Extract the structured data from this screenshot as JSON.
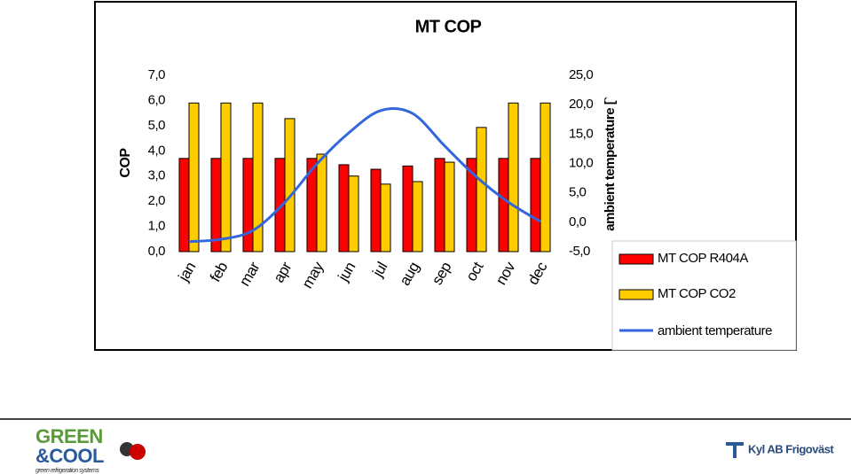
{
  "chart_data": {
    "type": "bar",
    "title": "MT COP",
    "y_label": "COP",
    "y2_label": "ambient temperature [`",
    "categories": [
      "jan",
      "feb",
      "mar",
      "apr",
      "may",
      "jun",
      "jul",
      "aug",
      "sep",
      "oct",
      "nov",
      "dec"
    ],
    "series": [
      {
        "name": "MT COP R404A",
        "color": "#ff0000",
        "type": "bar",
        "values": [
          3.7,
          3.7,
          3.7,
          3.7,
          3.7,
          3.45,
          3.27,
          3.4,
          3.7,
          3.7,
          3.7,
          3.7
        ]
      },
      {
        "name": "MT COP CO2",
        "color": "#ffcc00",
        "type": "bar",
        "values": [
          5.9,
          5.9,
          5.9,
          5.28,
          3.87,
          3.0,
          2.68,
          2.78,
          3.55,
          4.93,
          5.9,
          5.9
        ]
      },
      {
        "name": "ambient temperature",
        "color": "#3366dd",
        "type": "line",
        "axis": "y2",
        "values": [
          -3.3,
          -2.9,
          -1.4,
          3.4,
          9.9,
          15.2,
          19.0,
          18.5,
          13.0,
          7.7,
          3.4,
          0.1
        ]
      }
    ],
    "ylim": [
      0,
      7
    ],
    "yticks": [
      {
        "value": 0,
        "label": "0,0"
      },
      {
        "value": 1,
        "label": "1,0"
      },
      {
        "value": 2,
        "label": "2,0"
      },
      {
        "value": 3,
        "label": "3,0"
      },
      {
        "value": 4,
        "label": "4,0"
      },
      {
        "value": 5,
        "label": "5,0"
      },
      {
        "value": 6,
        "label": "6,0"
      },
      {
        "value": 7,
        "label": "7,0"
      }
    ],
    "y2lim": [
      -5,
      25
    ],
    "y2ticks": [
      {
        "value": -5,
        "label": "-5,0"
      },
      {
        "value": 0,
        "label": "0,0"
      },
      {
        "value": 5,
        "label": "5,0"
      },
      {
        "value": 10,
        "label": "10,0"
      },
      {
        "value": 15,
        "label": "15,0"
      },
      {
        "value": 20,
        "label": "20,0"
      },
      {
        "value": 25,
        "label": "25,0"
      }
    ],
    "legend": "right"
  },
  "footer": {
    "left_logo": "GREEN",
    "left_logo_2": "&COOL",
    "left_tagline": "green refrigeration systems",
    "right_logo": "Kyl AB Frigoväst"
  }
}
